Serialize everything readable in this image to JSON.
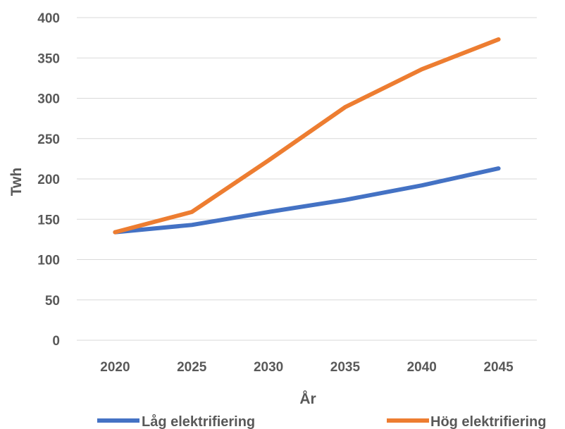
{
  "chart_data": {
    "type": "line",
    "title": "",
    "xlabel": "År",
    "ylabel": "Twh",
    "x": [
      "2020",
      "2025",
      "2030",
      "2035",
      "2040",
      "2045"
    ],
    "ylim": [
      0,
      400
    ],
    "yticks": [
      "0",
      "50",
      "100",
      "150",
      "200",
      "250",
      "300",
      "350",
      "400"
    ],
    "grid": true,
    "legend_position": "bottom",
    "series": [
      {
        "name": "Låg elektrifiering",
        "color": "#4472C4",
        "values": [
          134,
          143,
          159,
          174,
          192,
          213
        ]
      },
      {
        "name": "Hög elektrifiering",
        "color": "#ED7D31",
        "values": [
          134,
          159,
          223,
          289,
          336,
          373
        ]
      }
    ]
  }
}
